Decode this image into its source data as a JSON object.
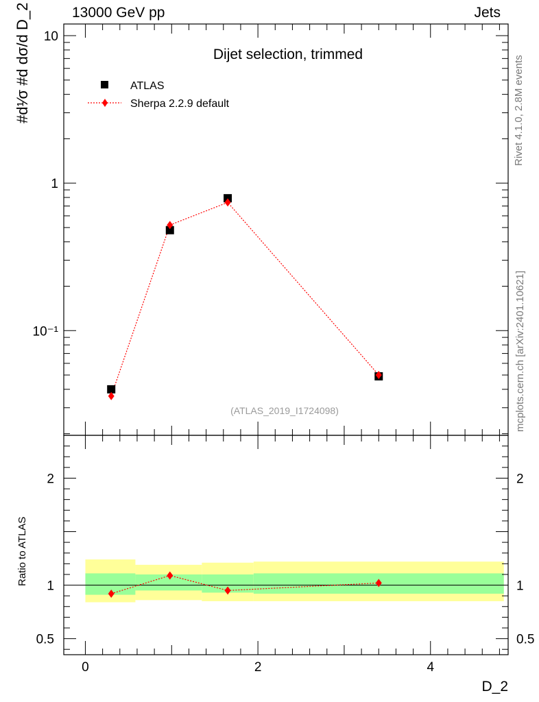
{
  "header": {
    "left": "13000 GeV pp",
    "right": "Jets",
    "side_top": "Rivet 4.1.0,  2.8M events",
    "side_bottom": "mcplots.cern.ch [arXiv:2401.10621]"
  },
  "annotation": {
    "title": "Dijet selection, trimmed",
    "watermark": "(ATLAS_2019_I1724098)"
  },
  "axes": {
    "ylabel_main": "#d¹⁄σ #d dσ/d D_2",
    "ylabel_ratio": "Ratio to ATLAS",
    "xlabel": "D_2"
  },
  "colors": {
    "data": "#000000",
    "mc": "#ff0000",
    "band_inner": "#99ff99",
    "band_outer": "#ffff99"
  },
  "chart_data": [
    {
      "type": "scatter",
      "panel": "main",
      "yscale": "log",
      "xlim": [
        -0.25,
        4.9
      ],
      "ylim": [
        0.0195,
        12.0
      ],
      "ytick_labels": [
        "10⁻¹",
        "1",
        "10"
      ],
      "ytick_values": [
        0.1,
        1,
        10
      ],
      "legend": {
        "placement": "top-left",
        "entries": [
          {
            "label": "ATLAS",
            "marker": "square",
            "color": "#000000"
          },
          {
            "label": "Sherpa 2.2.9 default",
            "marker": "diamond",
            "color": "#ff0000"
          }
        ]
      },
      "series": [
        {
          "name": "ATLAS",
          "marker": "square",
          "x": [
            0.3,
            0.98,
            1.65,
            3.4
          ],
          "y": [
            0.04,
            0.48,
            0.79,
            0.049
          ]
        },
        {
          "name": "Sherpa 2.2.9 default",
          "marker": "diamond",
          "line": "dotted",
          "x": [
            0.3,
            0.98,
            1.65,
            3.4
          ],
          "y": [
            0.036,
            0.52,
            0.74,
            0.05
          ]
        }
      ]
    },
    {
      "type": "scatter",
      "panel": "ratio",
      "xlim": [
        -0.25,
        4.9
      ],
      "ylim": [
        0.35,
        2.4
      ],
      "ytick_labels": [
        "0.5",
        "1",
        "2"
      ],
      "ytick_values": [
        0.5,
        1,
        2
      ],
      "xtick_labels": [
        "0",
        "2",
        "4"
      ],
      "xtick_values": [
        0,
        2,
        4
      ],
      "reference_line": 1,
      "bands": [
        {
          "x0": 0.0,
          "x1": 0.58,
          "inner": [
            0.91,
            1.11
          ],
          "outer": [
            0.84,
            1.24
          ]
        },
        {
          "x0": 0.58,
          "x1": 1.35,
          "inner": [
            0.95,
            1.1
          ],
          "outer": [
            0.86,
            1.19
          ]
        },
        {
          "x0": 1.35,
          "x1": 1.95,
          "inner": [
            0.93,
            1.1
          ],
          "outer": [
            0.85,
            1.21
          ]
        },
        {
          "x0": 1.95,
          "x1": 4.85,
          "inner": [
            0.92,
            1.11
          ],
          "outer": [
            0.85,
            1.22
          ]
        }
      ],
      "series": [
        {
          "name": "Sherpa 2.2.9 default",
          "marker": "diamond",
          "line": "dotted",
          "x": [
            0.3,
            0.98,
            1.65,
            3.4
          ],
          "y": [
            0.92,
            1.09,
            0.95,
            1.02
          ]
        }
      ]
    }
  ]
}
